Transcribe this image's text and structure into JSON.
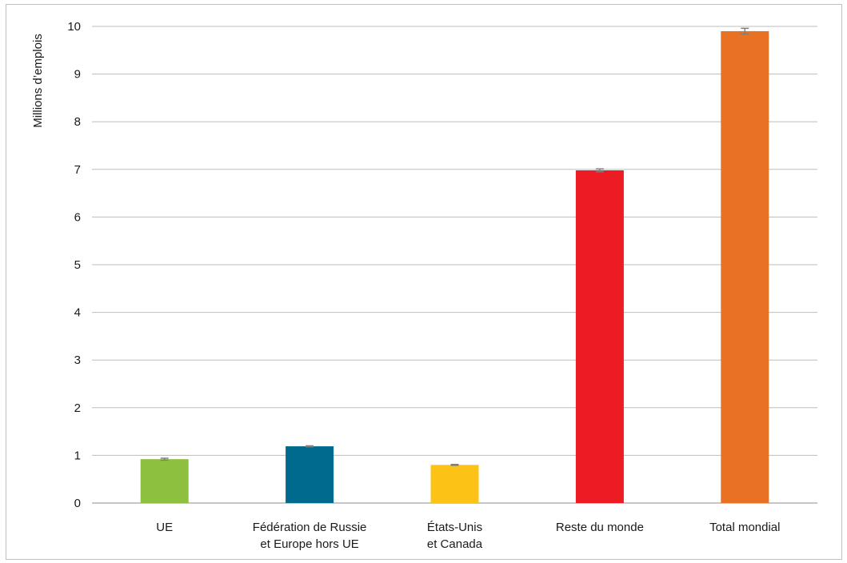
{
  "chart_data": {
    "type": "bar",
    "ylabel": "Millions d’emplois",
    "ylim": [
      0,
      10
    ],
    "yticks": [
      0,
      1,
      2,
      3,
      4,
      5,
      6,
      7,
      8,
      9,
      10
    ],
    "grid": true,
    "categories": [
      [
        "UE"
      ],
      [
        "Fédération de Russie",
        "et Europe hors UE"
      ],
      [
        "États-Unis",
        "et Canada"
      ],
      [
        "Reste du monde"
      ],
      [
        "Total mondial"
      ]
    ],
    "values": [
      0.92,
      1.19,
      0.8,
      6.98,
      9.9
    ],
    "error_bars": [
      0.02,
      0.01,
      0.01,
      0.03,
      0.06
    ],
    "colors": [
      "#8dc03f",
      "#006a8e",
      "#fcc316",
      "#ed1c24",
      "#e87124"
    ]
  }
}
